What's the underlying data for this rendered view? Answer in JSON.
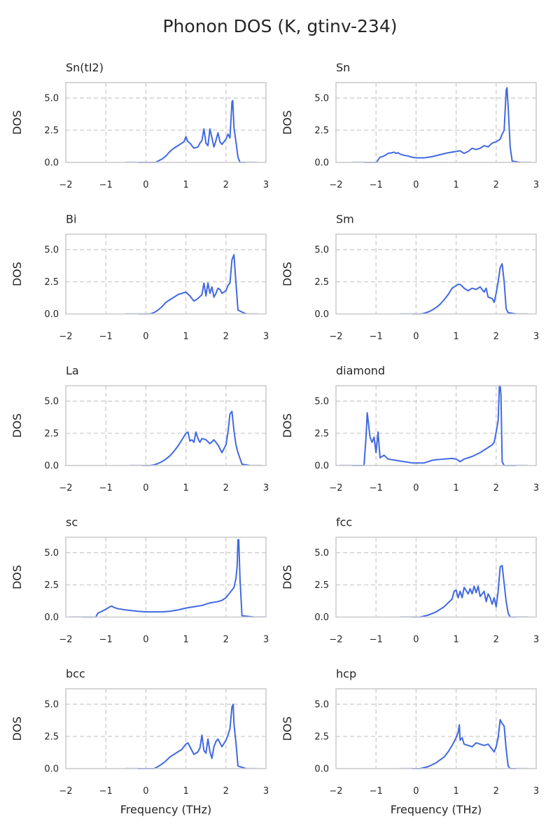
{
  "figure": {
    "title": "Phonon DOS (K, gtinv-234)"
  },
  "chart_data": [
    {
      "type": "line",
      "title": "Sn(tI2)",
      "xlabel": "",
      "ylabel": "DOS",
      "xlim": [
        -2,
        3
      ],
      "ylim": [
        0,
        6.2
      ],
      "xticks": [
        "−2",
        "−1",
        "0",
        "1",
        "2",
        "3"
      ],
      "yticks": [
        "0.0",
        "2.5",
        "5.0"
      ],
      "grid": true,
      "series": [
        {
          "x": [
            -0.2,
            0.25,
            0.3,
            0.4,
            0.5,
            0.6,
            0.7,
            0.8,
            0.9,
            0.95,
            1.0,
            1.05,
            1.1,
            1.2,
            1.3,
            1.35,
            1.4,
            1.45,
            1.5,
            1.55,
            1.6,
            1.65,
            1.7,
            1.75,
            1.8,
            1.85,
            1.9,
            2.0,
            2.05,
            2.1,
            2.15,
            2.17,
            2.2,
            2.25,
            2.3,
            2.35,
            2.5
          ],
          "y": [
            0,
            0,
            0.1,
            0.25,
            0.5,
            0.85,
            1.1,
            1.3,
            1.5,
            1.6,
            2.0,
            1.6,
            1.5,
            1.1,
            1.2,
            1.5,
            1.7,
            2.6,
            1.5,
            1.3,
            2.6,
            1.9,
            1.2,
            1.7,
            2.3,
            1.6,
            1.4,
            1.8,
            2.2,
            1.9,
            4.7,
            4.8,
            2.7,
            1.6,
            0.4,
            0,
            0
          ]
        }
      ]
    },
    {
      "type": "line",
      "title": "Sn",
      "xlabel": "",
      "ylabel": "DOS",
      "xlim": [
        -2,
        3
      ],
      "ylim": [
        0,
        6.2
      ],
      "xticks": [
        "−2",
        "−1",
        "0",
        "1",
        "2",
        "3"
      ],
      "yticks": [
        "0.0",
        "2.5",
        "5.0"
      ],
      "grid": true,
      "series": [
        {
          "x": [
            -1.3,
            -0.98,
            -0.95,
            -0.9,
            -0.8,
            -0.7,
            -0.6,
            -0.55,
            -0.5,
            -0.45,
            -0.4,
            -0.3,
            -0.2,
            -0.1,
            0,
            0.2,
            0.4,
            0.6,
            0.8,
            1.0,
            1.1,
            1.2,
            1.3,
            1.4,
            1.5,
            1.6,
            1.7,
            1.8,
            1.9,
            2.0,
            2.1,
            2.15,
            2.2,
            2.25,
            2.27,
            2.3,
            2.35,
            2.4,
            2.6
          ],
          "y": [
            0,
            0,
            0.2,
            0.4,
            0.5,
            0.7,
            0.75,
            0.8,
            0.7,
            0.75,
            0.65,
            0.55,
            0.5,
            0.4,
            0.35,
            0.35,
            0.45,
            0.6,
            0.75,
            0.85,
            0.9,
            0.7,
            0.85,
            1.1,
            1.0,
            1.1,
            1.3,
            1.2,
            1.5,
            1.6,
            1.8,
            2.2,
            2.5,
            5.6,
            5.8,
            4.3,
            1.2,
            0.1,
            0
          ]
        }
      ]
    },
    {
      "type": "line",
      "title": "Bi",
      "xlabel": "",
      "ylabel": "DOS",
      "xlim": [
        -2,
        3
      ],
      "ylim": [
        0,
        6.2
      ],
      "xticks": [
        "−2",
        "−1",
        "0",
        "1",
        "2",
        "3"
      ],
      "yticks": [
        "0.0",
        "2.5",
        "5.0"
      ],
      "grid": true,
      "series": [
        {
          "x": [
            -0.2,
            0.1,
            0.2,
            0.3,
            0.4,
            0.5,
            0.6,
            0.7,
            0.8,
            0.9,
            1.0,
            1.1,
            1.2,
            1.3,
            1.4,
            1.45,
            1.5,
            1.55,
            1.6,
            1.65,
            1.7,
            1.75,
            1.8,
            1.85,
            1.9,
            2.0,
            2.05,
            2.1,
            2.15,
            2.2,
            2.25,
            2.3,
            2.5
          ],
          "y": [
            0,
            0,
            0.1,
            0.3,
            0.55,
            0.9,
            1.1,
            1.3,
            1.5,
            1.6,
            1.7,
            1.4,
            1.0,
            1.2,
            1.5,
            2.4,
            1.4,
            2.4,
            1.6,
            2.1,
            1.3,
            1.6,
            2.0,
            1.9,
            1.6,
            1.8,
            2.2,
            2.4,
            4.2,
            4.6,
            2.4,
            0.3,
            0
          ]
        }
      ]
    },
    {
      "type": "line",
      "title": "Sm",
      "xlabel": "",
      "ylabel": "DOS",
      "xlim": [
        -2,
        3
      ],
      "ylim": [
        0,
        6.2
      ],
      "xticks": [
        "−2",
        "−1",
        "0",
        "1",
        "2",
        "3"
      ],
      "yticks": [
        "0.0",
        "2.5",
        "5.0"
      ],
      "grid": true,
      "series": [
        {
          "x": [
            -0.1,
            0.1,
            0.2,
            0.3,
            0.4,
            0.5,
            0.6,
            0.7,
            0.8,
            0.9,
            1.0,
            1.05,
            1.1,
            1.2,
            1.3,
            1.4,
            1.5,
            1.6,
            1.7,
            1.75,
            1.8,
            1.9,
            1.95,
            2.0,
            2.05,
            2.1,
            2.15,
            2.2,
            2.25,
            2.3,
            2.5
          ],
          "y": [
            0,
            0,
            0.05,
            0.15,
            0.3,
            0.5,
            0.75,
            1.1,
            1.5,
            2.0,
            2.2,
            2.3,
            2.3,
            2.0,
            1.8,
            2.0,
            1.9,
            2.1,
            1.7,
            2.0,
            1.3,
            1.2,
            0.9,
            1.6,
            2.5,
            3.6,
            3.9,
            2.5,
            0.4,
            0.1,
            0
          ]
        }
      ]
    },
    {
      "type": "line",
      "title": "La",
      "xlabel": "",
      "ylabel": "DOS",
      "xlim": [
        -2,
        3
      ],
      "ylim": [
        0,
        6.2
      ],
      "xticks": [
        "−2",
        "−1",
        "0",
        "1",
        "2",
        "3"
      ],
      "yticks": [
        "0.0",
        "2.5",
        "5.0"
      ],
      "grid": true,
      "series": [
        {
          "x": [
            -0.1,
            0.1,
            0.2,
            0.3,
            0.4,
            0.5,
            0.6,
            0.7,
            0.8,
            0.9,
            1.0,
            1.05,
            1.1,
            1.15,
            1.2,
            1.25,
            1.3,
            1.35,
            1.4,
            1.5,
            1.6,
            1.7,
            1.8,
            1.9,
            2.0,
            2.05,
            2.1,
            2.15,
            2.2,
            2.25,
            2.3,
            2.4,
            2.6
          ],
          "y": [
            0,
            0,
            0.05,
            0.15,
            0.3,
            0.5,
            0.75,
            1.1,
            1.5,
            2.0,
            2.5,
            2.6,
            1.9,
            2.0,
            1.8,
            2.6,
            2.1,
            1.8,
            2.1,
            2.0,
            1.7,
            2.0,
            1.6,
            1.0,
            1.6,
            2.6,
            4.0,
            4.2,
            2.7,
            1.6,
            1.0,
            0.1,
            0
          ]
        }
      ]
    },
    {
      "type": "line",
      "title": "diamond",
      "xlabel": "",
      "ylabel": "DOS",
      "xlim": [
        -2,
        3
      ],
      "ylim": [
        0,
        6.2
      ],
      "xticks": [
        "−2",
        "−1",
        "0",
        "1",
        "2",
        "3"
      ],
      "yticks": [
        "0.0",
        "2.5",
        "5.0"
      ],
      "grid": true,
      "series": [
        {
          "x": [
            -1.6,
            -1.3,
            -1.25,
            -1.22,
            -1.15,
            -1.1,
            -1.05,
            -1.0,
            -0.95,
            -0.9,
            -0.8,
            -0.7,
            -0.5,
            -0.3,
            -0.1,
            0,
            0.2,
            0.4,
            0.5,
            0.7,
            0.9,
            1.0,
            1.1,
            1.2,
            1.4,
            1.6,
            1.8,
            1.9,
            1.95,
            2.0,
            2.05,
            2.08,
            2.1,
            2.12,
            2.15,
            2.2,
            2.5
          ],
          "y": [
            0,
            0,
            2.2,
            4.1,
            2.2,
            1.8,
            2.2,
            1.0,
            2.6,
            0.6,
            0.8,
            0.5,
            0.4,
            0.3,
            0.2,
            0.2,
            0.2,
            0.4,
            0.45,
            0.5,
            0.55,
            0.5,
            0.3,
            0.5,
            0.7,
            1.0,
            1.4,
            1.6,
            1.8,
            2.6,
            3.5,
            6.2,
            6.2,
            5.5,
            0.3,
            0,
            0
          ]
        }
      ]
    },
    {
      "type": "line",
      "title": "sc",
      "xlabel": "",
      "ylabel": "DOS",
      "xlim": [
        -2,
        3
      ],
      "ylim": [
        0,
        6.2
      ],
      "xticks": [
        "−2",
        "−1",
        "0",
        "1",
        "2",
        "3"
      ],
      "yticks": [
        "0.0",
        "2.5",
        "5.0"
      ],
      "grid": true,
      "series": [
        {
          "x": [
            -1.6,
            -1.25,
            -1.2,
            -1.1,
            -1.0,
            -0.9,
            -0.85,
            -0.8,
            -0.7,
            -0.5,
            -0.2,
            0,
            0.2,
            0.4,
            0.6,
            0.8,
            1.0,
            1.2,
            1.4,
            1.6,
            1.8,
            1.9,
            2.0,
            2.1,
            2.2,
            2.25,
            2.28,
            2.3,
            2.32,
            2.35,
            2.4,
            2.7
          ],
          "y": [
            0,
            0,
            0.3,
            0.45,
            0.6,
            0.8,
            0.85,
            0.75,
            0.65,
            0.55,
            0.45,
            0.4,
            0.4,
            0.4,
            0.45,
            0.55,
            0.7,
            0.8,
            0.9,
            1.1,
            1.2,
            1.3,
            1.5,
            1.9,
            2.3,
            3.0,
            4.0,
            6.0,
            6.0,
            3.0,
            0.1,
            0
          ]
        }
      ]
    },
    {
      "type": "line",
      "title": "fcc",
      "xlabel": "",
      "ylabel": "DOS",
      "xlim": [
        -2,
        3
      ],
      "ylim": [
        0,
        6.2
      ],
      "xticks": [
        "−2",
        "−1",
        "0",
        "1",
        "2",
        "3"
      ],
      "yticks": [
        "0.0",
        "2.5",
        "5.0"
      ],
      "grid": true,
      "series": [
        {
          "x": [
            -0.1,
            0.1,
            0.3,
            0.5,
            0.7,
            0.8,
            0.9,
            0.95,
            1.0,
            1.05,
            1.1,
            1.15,
            1.2,
            1.3,
            1.35,
            1.4,
            1.45,
            1.5,
            1.55,
            1.6,
            1.7,
            1.75,
            1.8,
            1.85,
            1.9,
            1.95,
            2.0,
            2.05,
            2.1,
            2.15,
            2.2,
            2.25,
            2.3,
            2.35,
            2.5
          ],
          "y": [
            0,
            0,
            0.15,
            0.4,
            0.8,
            1.1,
            1.4,
            2.0,
            2.1,
            1.5,
            2.0,
            1.5,
            2.3,
            1.8,
            2.2,
            1.8,
            2.4,
            1.9,
            2.4,
            1.6,
            2.0,
            1.2,
            1.8,
            1.5,
            1.0,
            1.5,
            0.8,
            2.0,
            3.9,
            4.0,
            2.6,
            1.2,
            0.3,
            0,
            0
          ]
        }
      ]
    },
    {
      "type": "line",
      "title": "bcc",
      "xlabel": "",
      "ylabel": "DOS",
      "xlim": [
        -2,
        3
      ],
      "ylim": [
        0,
        6.2
      ],
      "xticks": [
        "−2",
        "−1",
        "0",
        "1",
        "2",
        "3"
      ],
      "yticks": [
        "0.0",
        "2.5",
        "5.0"
      ],
      "grid": true,
      "series": [
        {
          "x": [
            -0.2,
            0.2,
            0.3,
            0.4,
            0.5,
            0.6,
            0.7,
            0.8,
            0.9,
            1.0,
            1.05,
            1.1,
            1.2,
            1.3,
            1.35,
            1.4,
            1.45,
            1.5,
            1.55,
            1.6,
            1.65,
            1.7,
            1.75,
            1.8,
            1.9,
            2.0,
            2.05,
            2.1,
            2.15,
            2.18,
            2.2,
            2.25,
            2.3,
            2.5
          ],
          "y": [
            0,
            0,
            0.15,
            0.35,
            0.6,
            0.9,
            1.1,
            1.3,
            1.5,
            1.9,
            2.0,
            1.7,
            1.1,
            1.3,
            1.6,
            2.6,
            1.4,
            1.2,
            2.3,
            1.3,
            0.8,
            1.7,
            2.1,
            2.3,
            1.7,
            2.2,
            2.6,
            3.1,
            4.8,
            5.0,
            3.5,
            2.0,
            0.2,
            0
          ]
        }
      ]
    },
    {
      "type": "line",
      "title": "hcp",
      "xlabel": "",
      "ylabel": "DOS",
      "xlim": [
        -2,
        3
      ],
      "ylim": [
        0,
        6.2
      ],
      "xticks": [
        "−2",
        "−1",
        "0",
        "1",
        "2",
        "3"
      ],
      "yticks": [
        "0.0",
        "2.5",
        "5.0"
      ],
      "grid": true,
      "series": [
        {
          "x": [
            -0.1,
            0.1,
            0.3,
            0.5,
            0.7,
            0.8,
            0.9,
            1.0,
            1.05,
            1.08,
            1.1,
            1.15,
            1.2,
            1.3,
            1.4,
            1.5,
            1.6,
            1.7,
            1.8,
            1.9,
            1.95,
            2.0,
            2.05,
            2.1,
            2.15,
            2.2,
            2.25,
            2.3,
            2.35,
            2.5
          ],
          "y": [
            0,
            0,
            0.15,
            0.45,
            0.9,
            1.3,
            1.8,
            2.4,
            2.8,
            3.4,
            2.2,
            2.4,
            1.9,
            1.8,
            1.7,
            2.0,
            1.9,
            1.8,
            1.9,
            1.5,
            1.3,
            1.7,
            2.4,
            3.8,
            3.5,
            3.3,
            1.5,
            0.2,
            0,
            0
          ]
        }
      ]
    }
  ],
  "layout_grid": {
    "cols": 2,
    "xlabel_bottom_row": "Frequency (THz)"
  }
}
